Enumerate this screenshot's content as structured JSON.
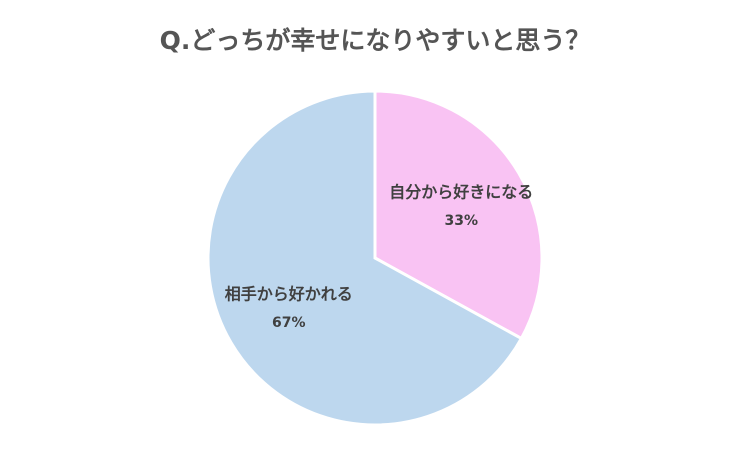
{
  "chart_data": {
    "type": "pie",
    "title": "Q.どっちが幸せになりやすいと思う？",
    "categories": [
      "自分から好きになる",
      "相手から好かれる"
    ],
    "values": [
      33,
      67
    ],
    "value_labels": [
      "33%",
      "67%"
    ],
    "colors": [
      "#f9c3f3",
      "#bdd7ee"
    ]
  }
}
